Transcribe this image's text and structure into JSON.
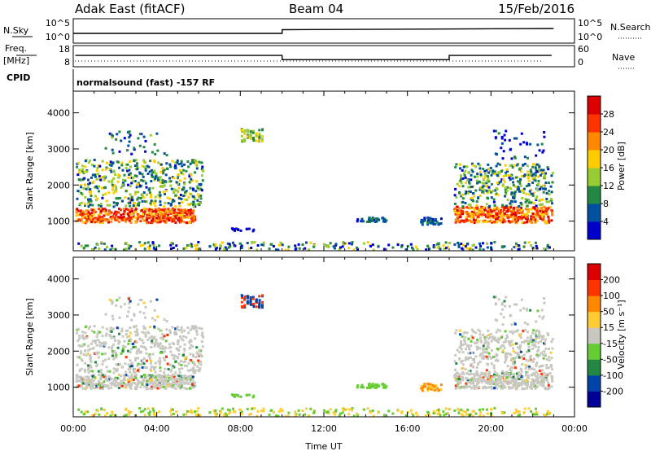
{
  "header": {
    "station": "Adak East (fitACF)",
    "beam": "Beam 04",
    "date": "15/Feb/2016"
  },
  "panels": {
    "nsky_label": "N.Sky",
    "nsearch_label": "N.Search",
    "freq_label_1": "Freq.",
    "freq_label_2": "[MHz]",
    "nave_label": "Nave",
    "cpid_label": "CPID",
    "cpid_text": "normalsound (fast) -157 RF"
  },
  "chart_data": [
    {
      "type": "line",
      "name": "noise-panel",
      "y_left_ticks": [
        "10^5",
        "10^0"
      ],
      "y_right_ticks": [
        "10^5",
        "10^0"
      ],
      "x_range_hours": [
        0,
        24
      ],
      "series": [
        {
          "x": [
            0,
            10,
            10,
            23
          ],
          "y": [
            0.4,
            0.4,
            0.55,
            0.6
          ]
        }
      ]
    },
    {
      "type": "line",
      "name": "frequency-panel",
      "y_left_ticks": [
        "18",
        "8"
      ],
      "y_right_ticks": [
        "60",
        "0"
      ],
      "x_range_hours": [
        0,
        24
      ],
      "series": [
        {
          "x": [
            0.1,
            10,
            10,
            18,
            18,
            22.9
          ],
          "y": [
            13.5,
            13.5,
            10.7,
            10.7,
            13.5,
            13.5
          ]
        }
      ]
    },
    {
      "type": "heatmap",
      "name": "power-panel",
      "ylabel": "Slant Range [km]",
      "yticks": [
        "1000",
        "2000",
        "3000",
        "4000"
      ],
      "ylim": [
        180,
        4600
      ],
      "x_range_hours": [
        0,
        24
      ],
      "colorbar_label": "Power [dB]",
      "colorbar_ticks": [
        "4",
        "8",
        "12",
        "16",
        "20",
        "24",
        "28"
      ],
      "colors": [
        "#0000cc",
        "#0050a0",
        "#228844",
        "#99cc33",
        "#ffcc00",
        "#ff8800",
        "#ff3300",
        "#dd0000"
      ]
    },
    {
      "type": "heatmap",
      "name": "velocity-panel",
      "ylabel": "Slant Range [km]",
      "yticks": [
        "1000",
        "2000",
        "3000",
        "4000"
      ],
      "ylim": [
        180,
        4600
      ],
      "x_range_hours": [
        0,
        24
      ],
      "xlabel": "Time UT",
      "xticks": [
        "00:00",
        "04:00",
        "08:00",
        "12:00",
        "16:00",
        "20:00",
        "00:00"
      ],
      "colorbar_label": "Velocity [m s⁻¹]",
      "colorbar_ticks": [
        "200",
        "100",
        "50",
        "15",
        "-15",
        "-50",
        "-100",
        "-200"
      ],
      "colors": [
        "#000099",
        "#0044aa",
        "#228844",
        "#66cc33",
        "#c8c8c0",
        "#ffcc33",
        "#ff8800",
        "#ff3300",
        "#dd0000"
      ]
    }
  ]
}
